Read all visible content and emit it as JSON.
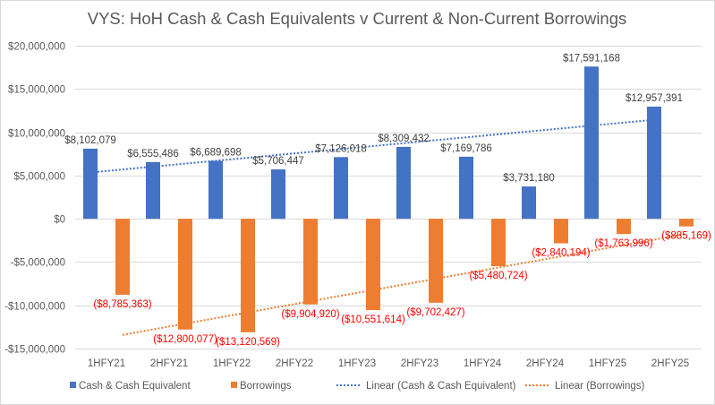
{
  "chart_data": {
    "type": "bar",
    "title": "VYS: HoH Cash & Cash Equivalents v Current & Non-Current Borrowings",
    "categories": [
      "1HFY21",
      "2HFY21",
      "1HFY22",
      "2HFY22",
      "1HFY23",
      "2HFY23",
      "1HFY24",
      "2HFY24",
      "1HFY25",
      "2HFY25"
    ],
    "series": [
      {
        "name": "Cash & Cash Equivalent",
        "color": "#4472c4",
        "label_color": "#404040",
        "values": [
          8102079,
          6555486,
          6689698,
          5706447,
          7126018,
          8309432,
          7169786,
          3731180,
          17591168,
          12957391
        ],
        "labels": [
          "$8,102,079",
          "$6,555,486",
          "$6,689,698",
          "$5,706,447",
          "$7,126,018",
          "$8,309,432",
          "$7,169,786",
          "$3,731,180",
          "$17,591,168",
          "$12,957,391"
        ]
      },
      {
        "name": "Borrowings",
        "color": "#ed7d31",
        "label_color": "#ff0000",
        "values": [
          -8785363,
          -12800077,
          -13120569,
          -9904920,
          -10551614,
          -9702427,
          -5480724,
          -2840194,
          -1763996,
          -885169
        ],
        "labels": [
          "($8,785,363)",
          "($12,800,077)",
          "($13,120,569)",
          "($9,904,920)",
          "($10,551,614)",
          "($9,702,427)",
          "($5,480,724)",
          "($2,840,194)",
          "($1,763,996)",
          "($885,169)"
        ]
      }
    ],
    "trendlines": [
      {
        "name": "Linear (Cash & Cash Equivalent)",
        "series": 0,
        "type": "linear",
        "color": "#4472c4"
      },
      {
        "name": "Linear (Borrowings)",
        "series": 1,
        "type": "linear",
        "color": "#ed7d31"
      }
    ],
    "ylim": [
      -15000000,
      20000000
    ],
    "yticks": [
      20000000,
      15000000,
      10000000,
      5000000,
      0,
      -5000000,
      -10000000,
      -15000000
    ],
    "ytick_labels": [
      "$20,000,000",
      "$15,000,000",
      "$10,000,000",
      "$5,000,000",
      "$0",
      "-$5,000,000",
      "-$10,000,000",
      "-$15,000,000"
    ],
    "xlabel": "",
    "ylabel": "",
    "grid": true,
    "legend_position": "bottom"
  }
}
